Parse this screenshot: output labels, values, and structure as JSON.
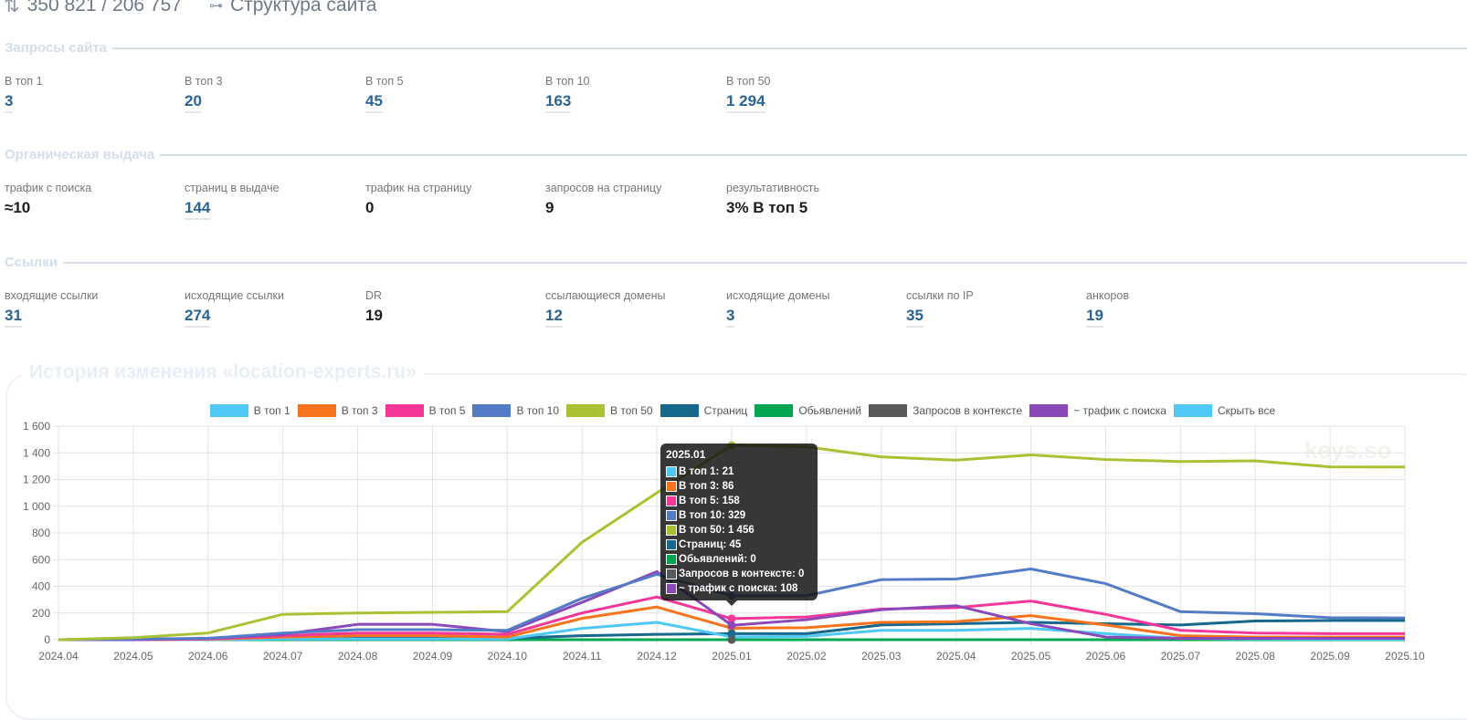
{
  "topbar": {
    "queries_value": "350 821 / 206 757",
    "structure_label": "Структура сайта"
  },
  "sections": {
    "queries": {
      "title": "Запросы сайта",
      "stats": [
        {
          "label": "В топ 1",
          "value": "3"
        },
        {
          "label": "В топ 3",
          "value": "20"
        },
        {
          "label": "В топ 5",
          "value": "45"
        },
        {
          "label": "В топ 10",
          "value": "163"
        },
        {
          "label": "В топ 50",
          "value": "1 294"
        }
      ]
    },
    "organic": {
      "title": "Органическая выдача",
      "stats": [
        {
          "label": "трафик с поиска",
          "value": "≈10"
        },
        {
          "label": "страниц в выдаче",
          "value": "144"
        },
        {
          "label": "трафик на страницу",
          "value": "0"
        },
        {
          "label": "запросов на страницу",
          "value": "9"
        },
        {
          "label": "результативность",
          "value": "3% В топ 5"
        }
      ]
    },
    "links": {
      "title": "Ссылки",
      "stats": [
        {
          "label": "входящие ссылки",
          "value": "31"
        },
        {
          "label": "исходящие ссылки",
          "value": "274"
        },
        {
          "label": "DR",
          "value": "19"
        },
        {
          "label": "ссылающиеся домены",
          "value": "12"
        },
        {
          "label": "исходящие домены",
          "value": "3"
        },
        {
          "label": "ссылки по IP",
          "value": "35"
        },
        {
          "label": "анкоров",
          "value": "19"
        }
      ]
    }
  },
  "history": {
    "title": "История изменения «location-experts.ru»",
    "watermark": "keys.so",
    "hide_all_label": "Скрыть все",
    "hide_all_color": "#4fc8f5"
  },
  "tooltip": {
    "title": "2025.01",
    "rows": [
      {
        "text": "В топ 1: 21",
        "color": "#4fc8f5"
      },
      {
        "text": "В топ 3: 86",
        "color": "#f7731c"
      },
      {
        "text": "В топ 5: 158",
        "color": "#f5379a"
      },
      {
        "text": "В топ 10: 329",
        "color": "#547bc6"
      },
      {
        "text": "В топ 50: 1 456",
        "color": "#a9c234"
      },
      {
        "text": "Страниц: 45",
        "color": "#16688c"
      },
      {
        "text": "Обьявлений: 0",
        "color": "#00a651"
      },
      {
        "text": "Запросов в контексте: 0",
        "color": "#58595b"
      },
      {
        "text": "~ трафик с поиска: 108",
        "color": "#8a48b8"
      }
    ]
  },
  "chart_data": {
    "type": "line",
    "title": "История изменения «location-experts.ru»",
    "xlabel": "",
    "ylabel": "",
    "ylim": [
      0,
      1600
    ],
    "yticks": [
      "0",
      "200",
      "400",
      "600",
      "800",
      "1 000",
      "1 200",
      "1 400",
      "1 600"
    ],
    "ytick_values": [
      0,
      200,
      400,
      600,
      800,
      1000,
      1200,
      1400,
      1600
    ],
    "grid": true,
    "legend_position": "top-center",
    "x": [
      "2024.04",
      "2024.05",
      "2024.06",
      "2024.07",
      "2024.08",
      "2024.09",
      "2024.10",
      "2024.11",
      "2024.12",
      "2025.01",
      "2025.02",
      "2025.03",
      "2025.04",
      "2025.05",
      "2025.06",
      "2025.07",
      "2025.08",
      "2025.09",
      "2025.10"
    ],
    "series": [
      {
        "name": "В топ 1",
        "color": "#4fc8f5",
        "values": [
          0,
          0,
          0,
          5,
          5,
          5,
          5,
          85,
          130,
          21,
          25,
          70,
          70,
          85,
          45,
          10,
          5,
          3,
          3
        ]
      },
      {
        "name": "В топ 3",
        "color": "#f7731c",
        "values": [
          0,
          0,
          3,
          20,
          30,
          30,
          20,
          160,
          245,
          86,
          90,
          130,
          135,
          180,
          110,
          30,
          20,
          20,
          20
        ]
      },
      {
        "name": "В топ 5",
        "color": "#f5379a",
        "values": [
          0,
          0,
          5,
          30,
          50,
          50,
          40,
          200,
          320,
          158,
          170,
          230,
          240,
          290,
          190,
          70,
          50,
          45,
          45
        ]
      },
      {
        "name": "В топ 10",
        "color": "#547bc6",
        "values": [
          0,
          5,
          10,
          50,
          75,
          75,
          70,
          310,
          490,
          329,
          330,
          450,
          455,
          530,
          420,
          210,
          195,
          165,
          163
        ]
      },
      {
        "name": "В топ 50",
        "color": "#a9c234",
        "values": [
          0,
          15,
          50,
          190,
          200,
          205,
          210,
          730,
          1100,
          1456,
          1445,
          1370,
          1345,
          1385,
          1350,
          1335,
          1340,
          1295,
          1294
        ]
      },
      {
        "name": "Страниц",
        "color": "#16688c",
        "values": [
          0,
          0,
          0,
          5,
          10,
          10,
          10,
          30,
          40,
          45,
          45,
          110,
          120,
          130,
          120,
          110,
          140,
          144,
          144
        ]
      },
      {
        "name": "Обьявлений",
        "color": "#00a651",
        "values": [
          0,
          0,
          0,
          0,
          0,
          0,
          0,
          0,
          0,
          0,
          0,
          0,
          0,
          0,
          0,
          0,
          0,
          0,
          0
        ]
      },
      {
        "name": "Запросов в контексте",
        "color": "#58595b",
        "values": [
          0,
          0,
          0,
          0,
          0,
          0,
          0,
          0,
          0,
          0,
          0,
          0,
          0,
          0,
          0,
          0,
          0,
          0,
          0
        ]
      },
      {
        "name": "~ трафик с поиска",
        "color": "#8a48b8",
        "values": [
          0,
          0,
          10,
          40,
          115,
          115,
          60,
          280,
          510,
          108,
          150,
          225,
          255,
          120,
          20,
          10,
          10,
          10,
          10
        ]
      }
    ]
  }
}
